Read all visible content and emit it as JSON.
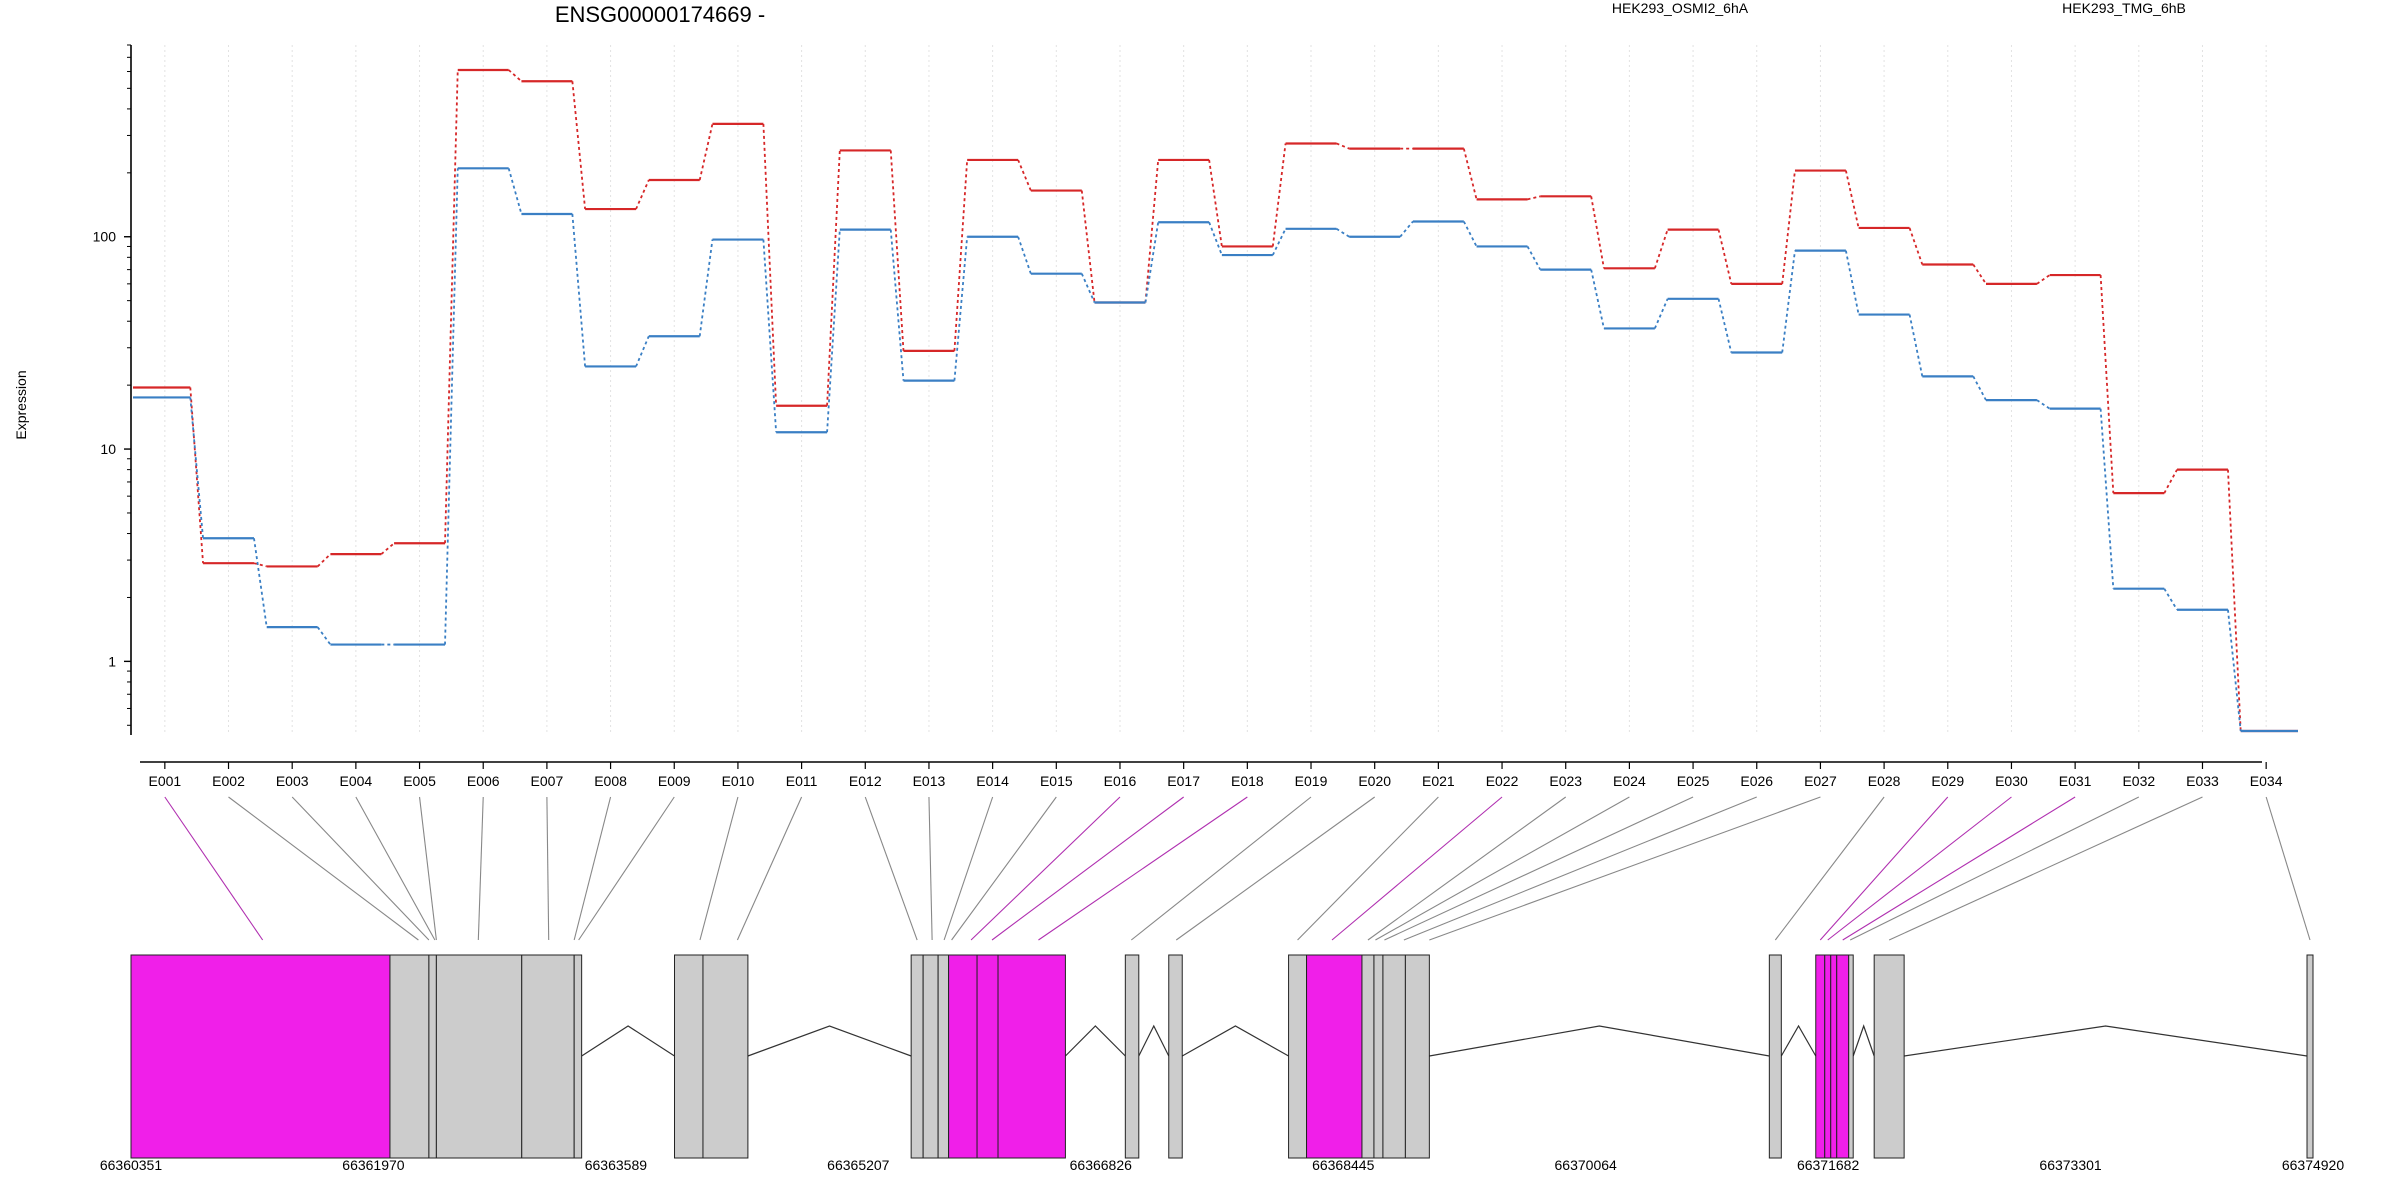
{
  "chart_data": {
    "type": "line",
    "title": "ENSG00000174669 -",
    "ylabel": "Expression",
    "yscale": "log",
    "yticks": [
      1,
      10,
      100
    ],
    "ytick_labels": [
      "1",
      "10",
      "100"
    ],
    "ylim": [
      0.45,
      800
    ],
    "categories": [
      "E001",
      "E002",
      "E003",
      "E004",
      "E005",
      "E006",
      "E007",
      "E008",
      "E009",
      "E010",
      "E011",
      "E012",
      "E013",
      "E014",
      "E015",
      "E016",
      "E017",
      "E018",
      "E019",
      "E020",
      "E021",
      "E022",
      "E023",
      "E024",
      "E025",
      "E026",
      "E027",
      "E028",
      "E029",
      "E030",
      "E031",
      "E032",
      "E033",
      "E034"
    ],
    "series": [
      {
        "name": "HEK293_OSMI2_6hA",
        "color": "#d62728",
        "values": [
          19.5,
          2.9,
          2.8,
          3.2,
          3.6,
          610,
          540,
          135,
          185,
          340,
          16,
          255,
          29,
          230,
          165,
          49,
          230,
          90,
          275,
          260,
          260,
          150,
          155,
          71,
          108,
          60,
          205,
          110,
          74,
          60,
          66,
          6.2,
          8.0,
          0.47
        ]
      },
      {
        "name": "HEK293_TMG_6hB",
        "color": "#3a7fc4",
        "values": [
          17.5,
          3.8,
          1.45,
          1.2,
          1.2,
          210,
          128,
          24.5,
          34,
          97,
          12,
          108,
          21,
          100,
          67,
          49,
          117,
          82,
          109,
          100,
          118,
          90,
          70,
          37,
          51,
          28.5,
          86,
          43,
          22,
          17,
          15.5,
          2.2,
          1.75,
          0.47
        ]
      }
    ],
    "grid": true,
    "legend_position": "top"
  },
  "gene_model": {
    "coordinate_labels": [
      "66360351",
      "66361970",
      "66363589",
      "66365207",
      "66366826",
      "66368445",
      "66370064",
      "66371682",
      "66373301",
      "66374920"
    ],
    "coord_start": 66360351,
    "coord_end": 66374920,
    "highlight_color": "#f01fe9",
    "exon_color": "#cccccc",
    "exons": [
      {
        "start": 66360351,
        "end": 66362080,
        "highlight": true
      },
      {
        "start": 66362080,
        "end": 66362340,
        "highlight": false
      },
      {
        "start": 66362340,
        "end": 66362390,
        "highlight": false
      },
      {
        "start": 66362390,
        "end": 66362960,
        "highlight": false
      },
      {
        "start": 66362960,
        "end": 66363310,
        "highlight": false
      },
      {
        "start": 66363310,
        "end": 66363360,
        "highlight": false
      },
      {
        "start": 66363980,
        "end": 66364170,
        "highlight": false
      },
      {
        "start": 66364170,
        "end": 66364470,
        "highlight": false
      },
      {
        "start": 66365560,
        "end": 66365640,
        "highlight": false
      },
      {
        "start": 66365640,
        "end": 66365740,
        "highlight": false
      },
      {
        "start": 66365740,
        "end": 66365810,
        "highlight": false
      },
      {
        "start": 66365810,
        "end": 66366000,
        "highlight": true
      },
      {
        "start": 66366000,
        "end": 66366140,
        "highlight": true
      },
      {
        "start": 66366140,
        "end": 66366590,
        "highlight": true
      },
      {
        "start": 66366990,
        "end": 66367080,
        "highlight": false
      },
      {
        "start": 66367280,
        "end": 66367370,
        "highlight": false
      },
      {
        "start": 66368080,
        "end": 66368200,
        "highlight": false
      },
      {
        "start": 66368200,
        "end": 66368570,
        "highlight": true
      },
      {
        "start": 66368570,
        "end": 66368650,
        "highlight": false
      },
      {
        "start": 66368650,
        "end": 66368710,
        "highlight": false
      },
      {
        "start": 66368710,
        "end": 66368860,
        "highlight": false
      },
      {
        "start": 66368860,
        "end": 66369020,
        "highlight": false
      },
      {
        "start": 66371290,
        "end": 66371370,
        "highlight": false
      },
      {
        "start": 66371600,
        "end": 66371660,
        "highlight": true
      },
      {
        "start": 66371660,
        "end": 66371700,
        "highlight": true
      },
      {
        "start": 66371700,
        "end": 66371740,
        "highlight": true
      },
      {
        "start": 66371740,
        "end": 66371820,
        "highlight": true
      },
      {
        "start": 66371820,
        "end": 66371850,
        "highlight": false
      },
      {
        "start": 66371990,
        "end": 66372190,
        "highlight": false
      },
      {
        "start": 66374880,
        "end": 66374920,
        "highlight": false
      }
    ],
    "exon_links": [
      {
        "exon": "E001",
        "target": 66361230,
        "highlight": true
      },
      {
        "exon": "E002",
        "target": 66362270,
        "highlight": false
      },
      {
        "exon": "E003",
        "target": 66362340,
        "highlight": false
      },
      {
        "exon": "E004",
        "target": 66362380,
        "highlight": false
      },
      {
        "exon": "E005",
        "target": 66362390,
        "highlight": false
      },
      {
        "exon": "E006",
        "target": 66362670,
        "highlight": false
      },
      {
        "exon": "E007",
        "target": 66363140,
        "highlight": false
      },
      {
        "exon": "E008",
        "target": 66363310,
        "highlight": false
      },
      {
        "exon": "E009",
        "target": 66363340,
        "highlight": false
      },
      {
        "exon": "E010",
        "target": 66364150,
        "highlight": false
      },
      {
        "exon": "E011",
        "target": 66364400,
        "highlight": false
      },
      {
        "exon": "E012",
        "target": 66365600,
        "highlight": false
      },
      {
        "exon": "E013",
        "target": 66365700,
        "highlight": false
      },
      {
        "exon": "E014",
        "target": 66365780,
        "highlight": false
      },
      {
        "exon": "E015",
        "target": 66365830,
        "highlight": false
      },
      {
        "exon": "E016",
        "target": 66365960,
        "highlight": true
      },
      {
        "exon": "E017",
        "target": 66366100,
        "highlight": true
      },
      {
        "exon": "E018",
        "target": 66366410,
        "highlight": true
      },
      {
        "exon": "E019",
        "target": 66367030,
        "highlight": false
      },
      {
        "exon": "E020",
        "target": 66367330,
        "highlight": false
      },
      {
        "exon": "E021",
        "target": 66368140,
        "highlight": false
      },
      {
        "exon": "E022",
        "target": 66368370,
        "highlight": true
      },
      {
        "exon": "E023",
        "target": 66368610,
        "highlight": false
      },
      {
        "exon": "E024",
        "target": 66368660,
        "highlight": false
      },
      {
        "exon": "E025",
        "target": 66368720,
        "highlight": false
      },
      {
        "exon": "E026",
        "target": 66368850,
        "highlight": false
      },
      {
        "exon": "E027",
        "target": 66369020,
        "highlight": false
      },
      {
        "exon": "E028",
        "target": 66371330,
        "highlight": false
      },
      {
        "exon": "E029",
        "target": 66371630,
        "highlight": true
      },
      {
        "exon": "E030",
        "target": 66371680,
        "highlight": true
      },
      {
        "exon": "E031",
        "target": 66371780,
        "highlight": true
      },
      {
        "exon": "E032",
        "target": 66371830,
        "highlight": false
      },
      {
        "exon": "E033",
        "target": 66372090,
        "highlight": false
      },
      {
        "exon": "E034",
        "target": 66374900,
        "highlight": false
      }
    ]
  }
}
